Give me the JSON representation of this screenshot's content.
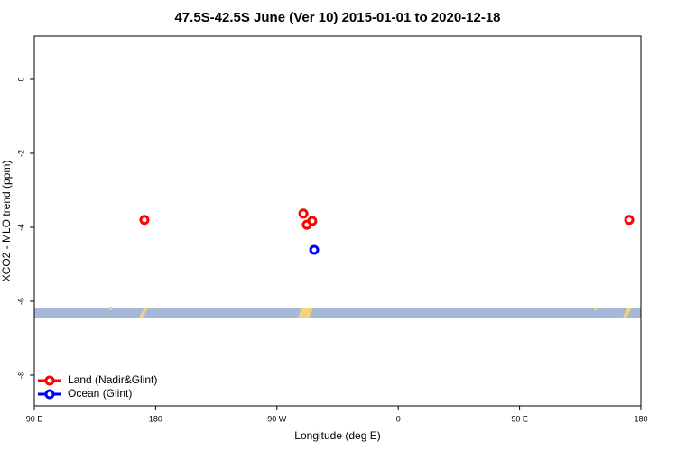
{
  "chart_data": {
    "type": "scatter",
    "title": "47.5S-42.5S June (Ver 10)   2015-01-01 to 2020-12-18",
    "x_label": "Longitude (deg E)",
    "y_label": "XCO2 - MLO trend (ppm)",
    "series": [
      {
        "name": "Land (Nadir&Glint)",
        "color": "#ff0000",
        "x": [
          171.7,
          289.6,
          292.2,
          296.2,
          531.3
        ],
        "values": [
          -3.8,
          -3.63,
          -3.93,
          -3.83,
          -3.8
        ]
      },
      {
        "name": "Ocean (Glint)",
        "color": "#0000ff",
        "x": [
          297.6
        ],
        "values": [
          -4.61
        ]
      }
    ],
    "xlim": [
      90,
      540
    ],
    "ylim": [
      -8.83,
      1.17
    ],
    "xticks": [
      {
        "value": 90,
        "label": "90 E"
      },
      180,
      {
        "value": 270,
        "label": "90 W"
      },
      {
        "value": 360,
        "label": "0"
      },
      {
        "value": 450,
        "label": "90 E"
      },
      {
        "value": 540,
        "label": "180"
      }
    ],
    "yticks": [
      0,
      -2,
      -4,
      -6,
      -8
    ],
    "legend": "bottom-left"
  }
}
